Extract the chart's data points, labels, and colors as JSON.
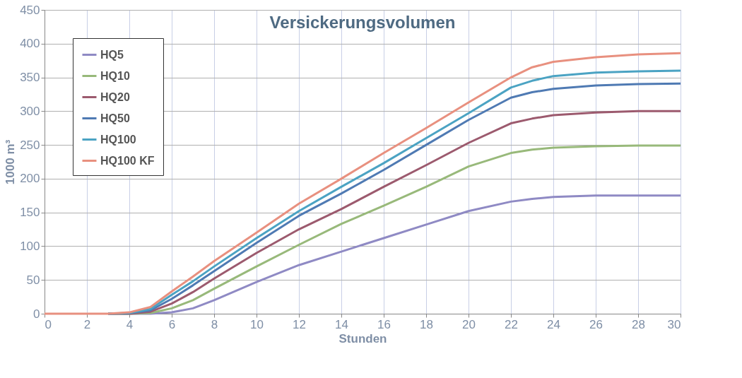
{
  "chart_data": {
    "type": "line",
    "title": "Versickerungsvolumen",
    "xlabel": "Stunden",
    "ylabel": "1000 m³",
    "x": [
      0,
      2,
      3,
      4,
      5,
      6,
      7,
      8,
      10,
      12,
      14,
      16,
      18,
      20,
      22,
      23,
      24,
      26,
      28,
      30
    ],
    "series": [
      {
        "name": "HQ5",
        "color": "#8f8ac4",
        "values": [
          null,
          null,
          0,
          0,
          0,
          2,
          8,
          20,
          47,
          72,
          92,
          112,
          132,
          152,
          166,
          170,
          173,
          175,
          175,
          175
        ]
      },
      {
        "name": "HQ10",
        "color": "#98b97a",
        "values": [
          null,
          null,
          0,
          0,
          1,
          8,
          20,
          37,
          70,
          102,
          133,
          160,
          188,
          218,
          238,
          243,
          246,
          248,
          249,
          249
        ]
      },
      {
        "name": "HQ20",
        "color": "#9c5a6e",
        "values": [
          null,
          null,
          0,
          0,
          3,
          15,
          32,
          52,
          90,
          125,
          155,
          188,
          220,
          253,
          282,
          289,
          294,
          298,
          300,
          300
        ]
      },
      {
        "name": "HQ50",
        "color": "#4f7ab3",
        "values": [
          null,
          null,
          0,
          1,
          5,
          22,
          42,
          63,
          105,
          145,
          178,
          213,
          250,
          287,
          320,
          328,
          333,
          338,
          340,
          341
        ]
      },
      {
        "name": "HQ100",
        "color": "#4ba3c3",
        "values": [
          null,
          null,
          0,
          1,
          7,
          28,
          48,
          70,
          112,
          152,
          188,
          223,
          260,
          297,
          335,
          345,
          352,
          357,
          359,
          360
        ]
      },
      {
        "name": "HQ100 KF",
        "color": "#e8907f",
        "values": [
          0,
          0,
          0,
          2,
          10,
          33,
          55,
          78,
          120,
          163,
          200,
          238,
          275,
          313,
          350,
          365,
          373,
          380,
          384,
          386
        ]
      }
    ],
    "xlim": [
      0,
      30
    ],
    "xticks": [
      0,
      2,
      4,
      6,
      8,
      10,
      12,
      14,
      16,
      18,
      20,
      22,
      24,
      26,
      28,
      30
    ],
    "ylim": [
      0,
      450
    ],
    "yticks": [
      0,
      50,
      100,
      150,
      200,
      250,
      300,
      350,
      400,
      450
    ],
    "grid": true,
    "legend": "top left",
    "marker": "none",
    "line_style": "solid"
  }
}
